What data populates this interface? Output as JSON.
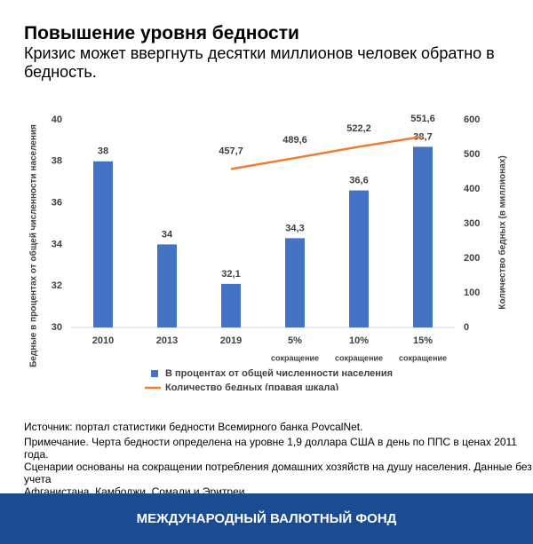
{
  "header": {
    "title": "Повышение уровня бедности",
    "subtitle": "Кризис может ввергнуть десятки миллионов человек обратно в бедность."
  },
  "chart_data": {
    "type": "bar_line",
    "categories": [
      [
        "2010"
      ],
      [
        "2013"
      ],
      [
        "2019"
      ],
      [
        "5%",
        "сокращение"
      ],
      [
        "10%",
        "сокращение"
      ],
      [
        "15%",
        "сокращение"
      ]
    ],
    "ylabel": "Бедные в процентах от общей численности населения",
    "y2label": "Количество бедных (в миллионах)",
    "ylim": [
      30,
      40
    ],
    "yticks": [
      30,
      32,
      34,
      36,
      38,
      40
    ],
    "y2lim": [
      0,
      600
    ],
    "y2ticks": [
      0,
      100,
      200,
      300,
      400,
      500,
      600
    ],
    "series": [
      {
        "name": "В процентах от общей численности населения",
        "type": "bar",
        "color": "#4472c4",
        "values": [
          38,
          34,
          32.1,
          34.3,
          36.6,
          38.7
        ],
        "value_labels": [
          "38",
          "34",
          "32,1",
          "34,3",
          "36,6",
          "38,7"
        ]
      },
      {
        "name": "Количество бедных (правая шкала)",
        "type": "line",
        "color": "#ed7d31",
        "axis": "y2",
        "values": [
          null,
          null,
          457.7,
          489.6,
          522.2,
          551.6
        ],
        "value_labels": [
          null,
          null,
          "457,7",
          "489,6",
          "522,2",
          "551,6"
        ]
      }
    ]
  },
  "notes": [
    "Источник: портал статистики бедности Всемирного банка PovcalNet.",
    "Примечание. Черта бедности определена на уровне 1,9 доллара США в день по ППС в ценах 2011 года.",
    "Сценарии основаны на сокращении потребления домашних хозяйств на душу населения. Данные без учета",
    "Афганистана, Камбоджи, Сомали и Эритреи."
  ],
  "footer": "МЕЖДУНАРОДНЫЙ ВАЛЮТНЫЙ ФОНД"
}
